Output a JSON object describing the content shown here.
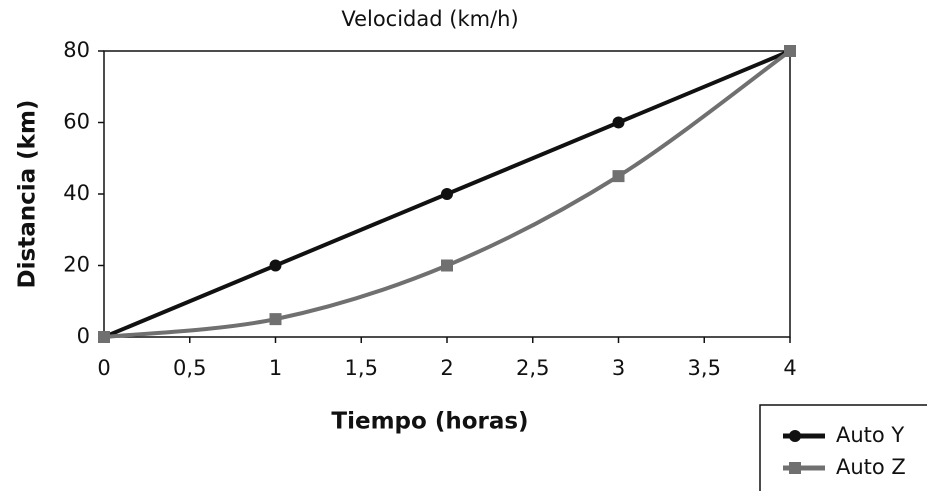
{
  "chart_data": {
    "type": "line",
    "title": "Velocidad (km/h)",
    "x_label": "Tiempo (horas)",
    "y_label": "Distancia (km)",
    "x": [
      0,
      1,
      2,
      3,
      4
    ],
    "series": [
      {
        "name": "Auto Y",
        "color": "#111111",
        "marker": "circle",
        "values": [
          0,
          20,
          40,
          60,
          80
        ]
      },
      {
        "name": "Auto Z",
        "color": "#707070",
        "marker": "square",
        "smooth": true,
        "values": [
          0,
          5,
          20,
          45,
          80
        ]
      }
    ],
    "xlim": [
      0,
      4
    ],
    "xticks": [
      0,
      {
        "value": 0.5,
        "label": "0,5"
      },
      1,
      {
        "value": 1.5,
        "label": "1,5"
      },
      2,
      {
        "value": 2.5,
        "label": "2,5"
      },
      3,
      {
        "value": 3.5,
        "label": "3,5"
      },
      4
    ],
    "ylim": [
      0,
      80
    ],
    "yticks": [
      0,
      20,
      40,
      60,
      80
    ],
    "grid": false,
    "legend": "lower right"
  }
}
